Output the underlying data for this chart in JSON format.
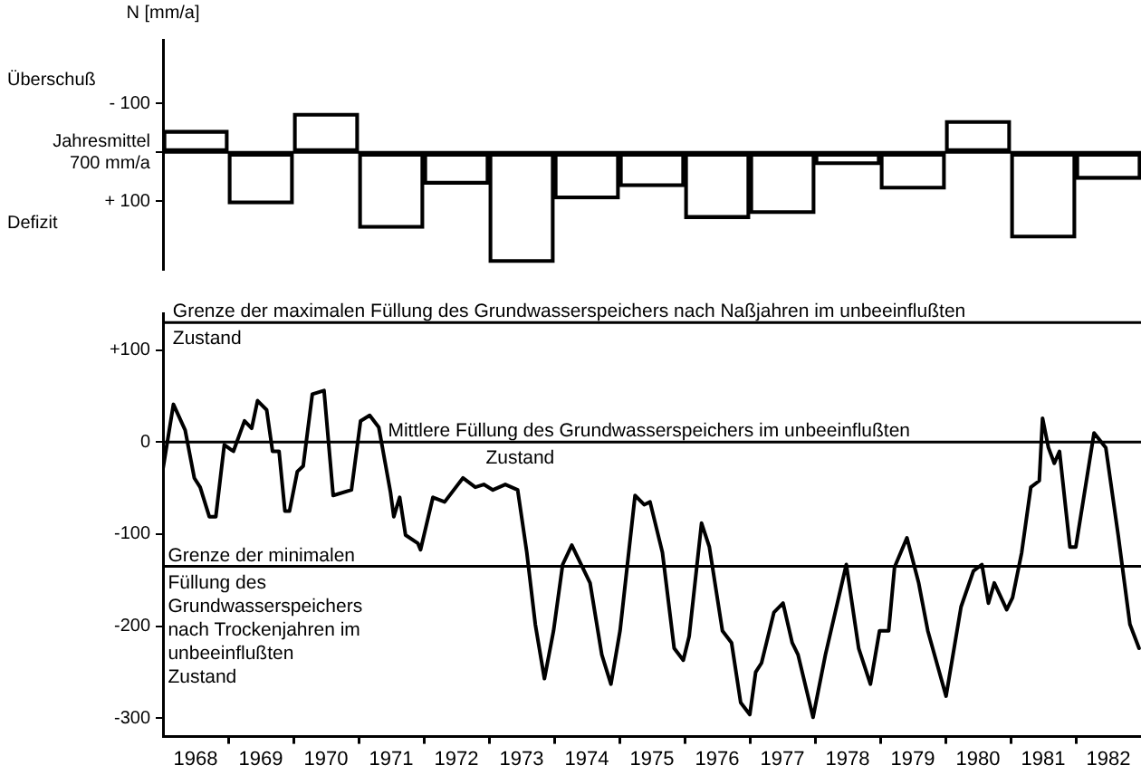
{
  "chart_data": [
    {
      "type": "bar",
      "ylabel": "N [mm/a]",
      "categories": [
        null,
        null,
        null,
        null,
        null,
        null,
        null,
        null,
        null,
        null,
        null,
        null,
        null,
        null,
        null
      ],
      "values": [
        -45,
        105,
        -80,
        155,
        65,
        225,
        95,
        70,
        135,
        125,
        25,
        75,
        -65,
        175,
        55
      ],
      "color": "#000000",
      "ylim": [
        240,
        -230
      ],
      "yticks": [
        {
          "value": -100,
          "label": "- 100"
        },
        {
          "value": 0,
          "label": "Jahresmittel 700 mm/a"
        },
        {
          "value": 100,
          "label": "+ 100"
        }
      ],
      "ref_lines": [
        {
          "axis": "y",
          "value": 0
        }
      ],
      "annotations": [
        "Überschuß",
        "Defizit"
      ],
      "tick_labels": "y",
      "grid": false
    },
    {
      "type": "line",
      "color": "#000000",
      "marker": "none",
      "line_style": "solid",
      "grid": false,
      "x": [
        1968.0,
        1968.16,
        1968.34,
        1968.48,
        1968.57,
        1968.71,
        1968.81,
        1968.94,
        1969.08,
        1969.25,
        1969.36,
        1969.45,
        1969.59,
        1969.68,
        1969.78,
        1969.87,
        1969.94,
        1970.06,
        1970.15,
        1970.29,
        1970.47,
        1970.61,
        1970.89,
        1971.03,
        1971.17,
        1971.31,
        1971.49,
        1971.54,
        1971.63,
        1971.72,
        1971.91,
        1971.95,
        1972.14,
        1972.32,
        1972.6,
        1972.79,
        1972.92,
        1973.06,
        1973.25,
        1973.44,
        1973.58,
        1973.71,
        1973.85,
        1973.99,
        1974.13,
        1974.27,
        1974.55,
        1974.73,
        1974.87,
        1975.01,
        1975.24,
        1975.38,
        1975.47,
        1975.66,
        1975.84,
        1975.98,
        1976.07,
        1976.26,
        1976.38,
        1976.58,
        1976.72,
        1976.86,
        1977.0,
        1977.09,
        1977.18,
        1977.37,
        1977.51,
        1977.65,
        1977.74,
        1977.97,
        1978.16,
        1978.48,
        1978.67,
        1978.85,
        1978.99,
        1979.13,
        1979.22,
        1979.41,
        1979.59,
        1979.73,
        1980.01,
        1980.24,
        1980.43,
        1980.56,
        1980.66,
        1980.75,
        1980.94,
        1981.03,
        1981.17,
        1981.31,
        1981.44,
        1981.49,
        1981.58,
        1981.67,
        1981.75,
        1981.91,
        1982.0,
        1982.28,
        1982.46,
        1982.65,
        1982.83,
        1982.97
      ],
      "values": [
        -29,
        41,
        13,
        -39,
        -49,
        -81,
        -81,
        -3,
        -10,
        23,
        15,
        45,
        35,
        -10,
        -10,
        -75,
        -75,
        -32,
        -26,
        52,
        56,
        -58,
        -52,
        23,
        29,
        16,
        -55,
        -81,
        -60,
        -101,
        -110,
        -117,
        -60,
        -65,
        -39,
        -49,
        -46,
        -52,
        -46,
        -52,
        -120,
        -198,
        -257,
        -205,
        -133,
        -112,
        -153,
        -231,
        -263,
        -205,
        -58,
        -68,
        -65,
        -120,
        -224,
        -237,
        -211,
        -88,
        -114,
        -205,
        -218,
        -283,
        -296,
        -250,
        -240,
        -185,
        -175,
        -218,
        -231,
        -299,
        -231,
        -133,
        -224,
        -263,
        -205,
        -205,
        -136,
        -104,
        -153,
        -205,
        -276,
        -179,
        -140,
        -133,
        -175,
        -153,
        -182,
        -169,
        -120,
        -49,
        -42,
        26,
        -6,
        -23,
        -10,
        -114,
        -114,
        10,
        -6,
        -101,
        -198,
        -224
      ],
      "xlim": [
        1968,
        1983
      ],
      "xticks": [
        {
          "value": 1968.5,
          "label": "1968"
        },
        {
          "value": 1969,
          "label": null
        },
        {
          "value": 1969.5,
          "label": "1969"
        },
        {
          "value": 1970,
          "label": null
        },
        {
          "value": 1970.5,
          "label": "1970"
        },
        {
          "value": 1971,
          "label": null
        },
        {
          "value": 1971.5,
          "label": "1971"
        },
        {
          "value": 1972,
          "label": null
        },
        {
          "value": 1972.5,
          "label": "1972"
        },
        {
          "value": 1973,
          "label": null
        },
        {
          "value": 1973.5,
          "label": "1973"
        },
        {
          "value": 1974,
          "label": null
        },
        {
          "value": 1974.5,
          "label": "1974"
        },
        {
          "value": 1975,
          "label": null
        },
        {
          "value": 1975.5,
          "label": "1975"
        },
        {
          "value": 1976,
          "label": null
        },
        {
          "value": 1976.5,
          "label": "1976"
        },
        {
          "value": 1977,
          "label": null
        },
        {
          "value": 1977.5,
          "label": "1977"
        },
        {
          "value": 1978,
          "label": null
        },
        {
          "value": 1978.5,
          "label": "1978"
        },
        {
          "value": 1979,
          "label": null
        },
        {
          "value": 1979.5,
          "label": "1979"
        },
        {
          "value": 1980,
          "label": null
        },
        {
          "value": 1980.5,
          "label": "1980"
        },
        {
          "value": 1981,
          "label": null
        },
        {
          "value": 1981.5,
          "label": "1981"
        },
        {
          "value": 1982,
          "label": null
        },
        {
          "value": 1982.5,
          "label": "1982"
        }
      ],
      "ylim": [
        -320,
        140
      ],
      "yticks": [
        {
          "value": 100,
          "label": "+100"
        },
        0,
        -100,
        -200,
        -300
      ],
      "ref_lines": [
        {
          "axis": "y",
          "value": 130,
          "label": "Grenze der maximalen Füllung des Grundwasserspeichers nach Naßjahren im unbeeinflußten Zustand"
        },
        {
          "axis": "y",
          "value": 0,
          "label": "Mittlere Füllung des Grundwasserspeichers im unbeeinflußten Zustand"
        },
        {
          "axis": "y",
          "value": -135,
          "label": "Grenze der minimalen Füllung des Grundwasserspeichers nach Trockenjahren im unbeeinflußten Zustand"
        }
      ]
    }
  ]
}
